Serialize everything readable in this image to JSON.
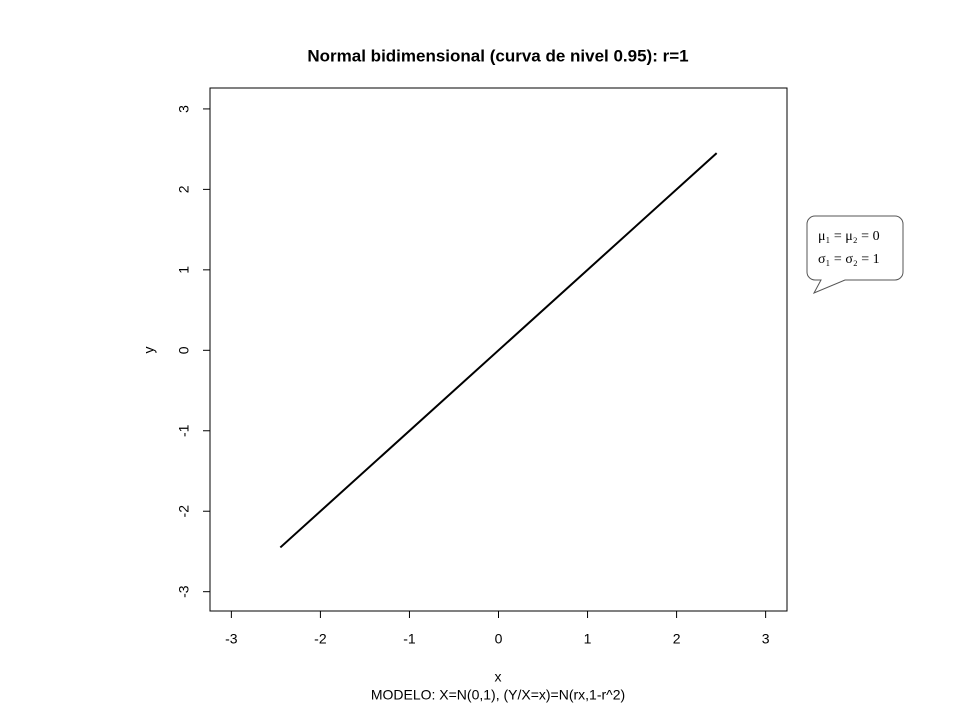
{
  "chart_data": {
    "type": "line",
    "title": "Normal bidimensional (curva de nivel 0.95): r=1",
    "x_label": "x",
    "y_label": "y",
    "footer": "MODELO: X=N(0,1), (Y/X=x)=N(rx,1-r^2)",
    "annotation": [
      "μ₁ = μ₂ = 0",
      "σ₁ = σ₂ = 1"
    ],
    "x": [
      -2.45,
      2.45
    ],
    "series": [
      {
        "values": [
          -2.45,
          2.45
        ],
        "color": "#000000"
      }
    ],
    "xlim": [
      -3.24,
      3.24
    ],
    "ylim": [
      -3.24,
      3.26
    ],
    "xticks": [
      -3,
      -2,
      -1,
      0,
      1,
      2,
      3
    ],
    "yticks": [
      -3,
      -2,
      -1,
      0,
      1,
      2,
      3
    ]
  }
}
